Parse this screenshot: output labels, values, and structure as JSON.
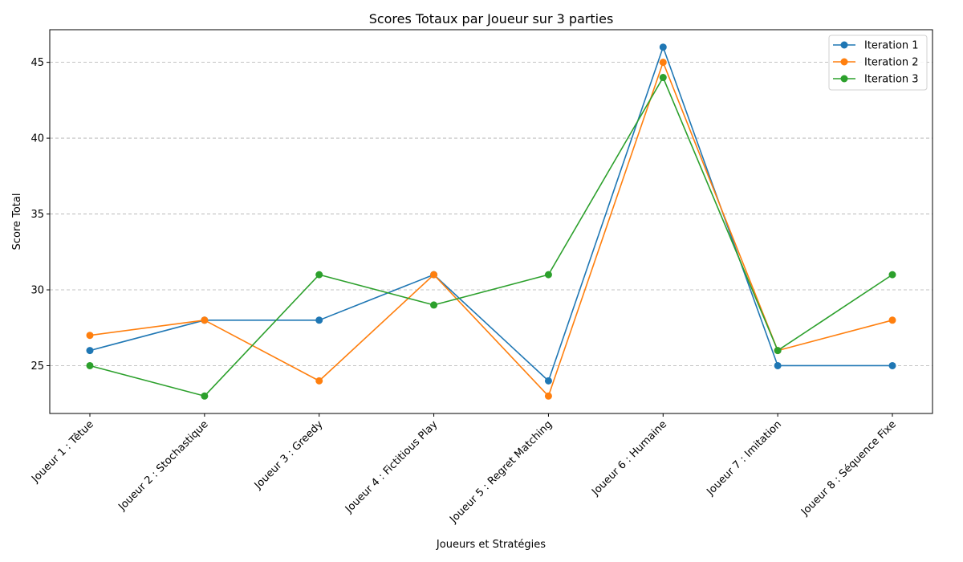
{
  "chart_data": {
    "type": "line",
    "title": "Scores Totaux par Joueur sur 3 parties",
    "xlabel": "Joueurs et Stratégies",
    "ylabel": "Score Total",
    "categories": [
      "Joueur 1 : Têtue",
      "Joueur 2 : Stochastique",
      "Joueur 3 : Greedy",
      "Joueur 4 : Fictitious Play",
      "Joueur 5 : Regret Matching",
      "Joueur 6 : Humaine",
      "Joueur 7 : Imitation",
      "Joueur 8 : Séquence Fixe"
    ],
    "series": [
      {
        "name": "Iteration 1",
        "color": "#1f77b4",
        "values": [
          26,
          28,
          28,
          31,
          24,
          46,
          25,
          25
        ]
      },
      {
        "name": "Iteration 2",
        "color": "#ff7f0e",
        "values": [
          27,
          28,
          24,
          31,
          23,
          45,
          26,
          28
        ]
      },
      {
        "name": "Iteration 3",
        "color": "#2ca02c",
        "values": [
          25,
          23,
          31,
          29,
          31,
          44,
          26,
          31
        ]
      }
    ],
    "ylim": [
      21.85,
      47.15
    ],
    "yticks": [
      25,
      30,
      35,
      40,
      45
    ],
    "grid": "y-dashed",
    "legend": "top-right"
  }
}
